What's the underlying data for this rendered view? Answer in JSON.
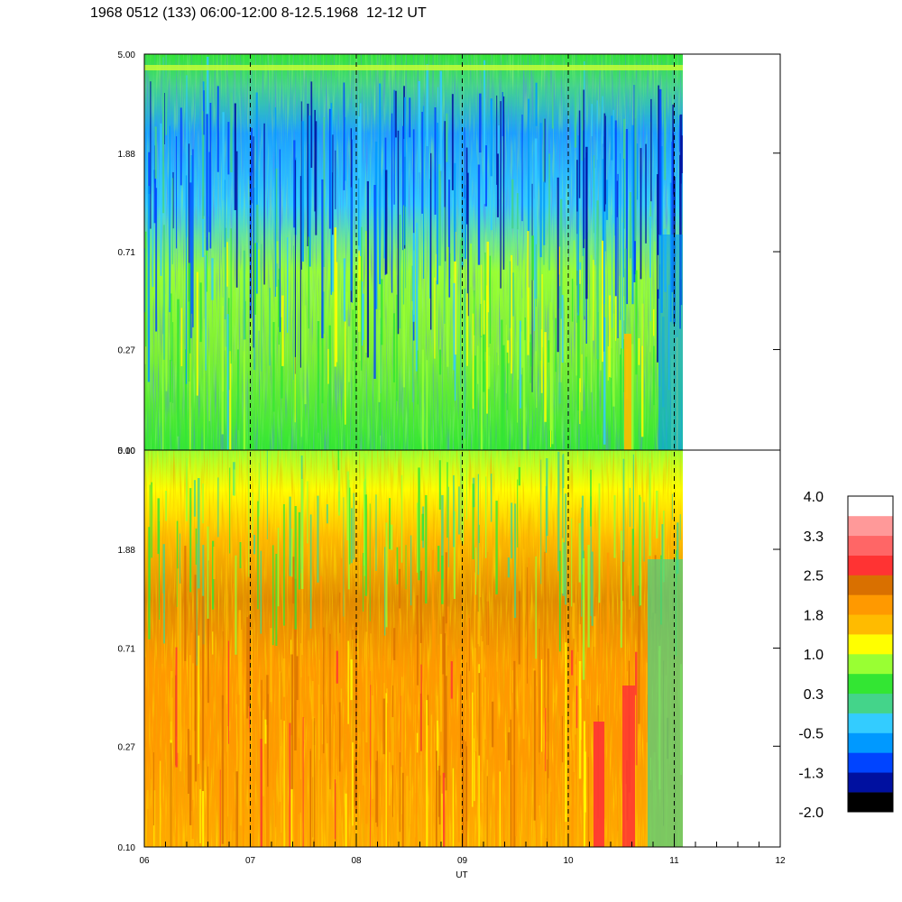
{
  "title": "1968 0512 (133) 06:00-12:00 8-12.5.1968  12-12 UT",
  "chart_data": {
    "type": "heatmap",
    "xlabel": "UT",
    "x_ticks": [
      "06",
      "07",
      "08",
      "09",
      "10",
      "11",
      "12"
    ],
    "x_range": [
      6,
      12
    ],
    "data_end_ut": 11.08,
    "panels": [
      {
        "name": "upper",
        "y_ticks": [
          "5.00",
          "1.88",
          "0.71",
          "0.27",
          "0.10"
        ],
        "y_range": [
          0.1,
          5.0
        ],
        "y_scale": "log"
      },
      {
        "name": "lower",
        "y_ticks": [
          "5.00",
          "1.88",
          "0.71",
          "0.27",
          "0.10"
        ],
        "y_range": [
          0.1,
          5.0
        ],
        "y_scale": "log"
      }
    ],
    "colorbar": {
      "labels": [
        "4.0",
        "3.3",
        "2.5",
        "1.8",
        "1.0",
        "0.3",
        "-0.5",
        "-1.3",
        "-2.0"
      ],
      "range": [
        -2.0,
        4.0
      ],
      "colors": [
        "#000000",
        "#0010a0",
        "#0044ff",
        "#0099ff",
        "#33ccff",
        "#44d48a",
        "#33e633",
        "#99ff33",
        "#ffff00",
        "#ffbb00",
        "#ff9900",
        "#d97000",
        "#ff3333",
        "#ff6666",
        "#ff9999",
        "#ffffff"
      ]
    }
  }
}
